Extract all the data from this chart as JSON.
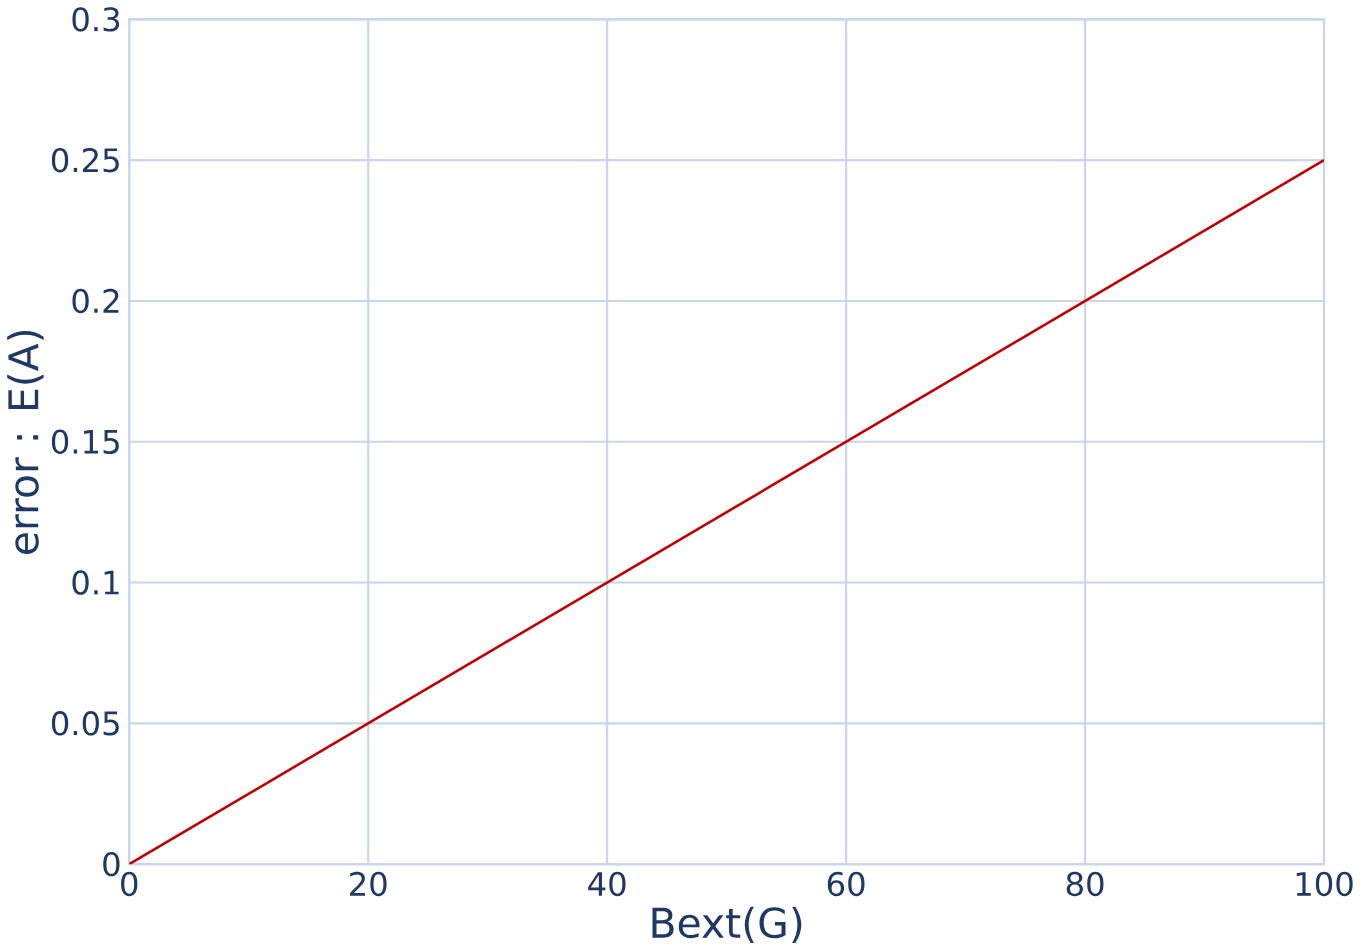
{
  "chart_data": {
    "type": "line",
    "xlabel": "Bext(G)",
    "ylabel": "error : E(A)",
    "x": [
      0,
      100
    ],
    "series": [
      {
        "color": "#c00000",
        "values": [
          0,
          0.25
        ]
      }
    ],
    "xlim": [
      0,
      100
    ],
    "ylim": [
      0,
      0.3
    ],
    "xticks": [
      0,
      20,
      40,
      60,
      80,
      100
    ],
    "yticks": [
      0,
      0.05,
      0.1,
      0.15,
      0.2,
      0.25,
      0.3
    ],
    "grid": true
  }
}
